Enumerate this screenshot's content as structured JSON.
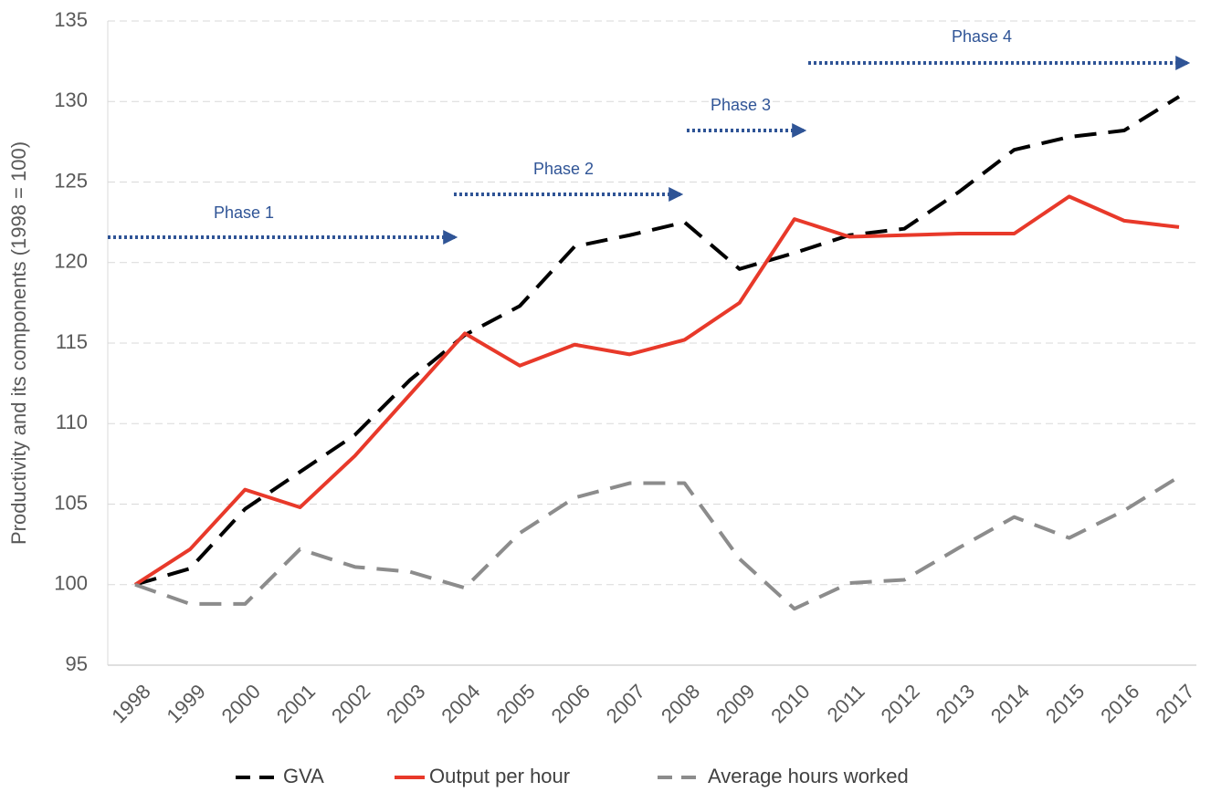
{
  "chart_data": {
    "type": "line",
    "y_label": "Productivity and its components (1998 = 100)",
    "categories": [
      "1998",
      "1999",
      "2000",
      "2001",
      "2002",
      "2003",
      "2004",
      "2005",
      "2006",
      "2007",
      "2008",
      "2009",
      "2010",
      "2011",
      "2012",
      "2013",
      "2014",
      "2015",
      "2016",
      "2017"
    ],
    "series": [
      {
        "name": "GVA",
        "color": "#000000",
        "dash": true,
        "values": [
          100,
          101,
          104.7,
          107,
          109.3,
          112.7,
          115.5,
          117.3,
          121,
          121.7,
          122.5,
          119.6,
          120.6,
          121.7,
          122.1,
          124.4,
          127,
          127.8,
          128.2,
          130.3
        ]
      },
      {
        "name": "Output per hour",
        "color": "#e8392a",
        "dash": false,
        "values": [
          100,
          102.2,
          105.9,
          104.8,
          108,
          111.8,
          115.6,
          113.6,
          114.9,
          114.3,
          115.2,
          117.5,
          122.7,
          121.6,
          121.7,
          121.8,
          121.8,
          124.1,
          122.6,
          122.2
        ]
      },
      {
        "name": "Average hours worked",
        "color": "#8c8c8c",
        "dash": true,
        "values": [
          100,
          98.8,
          98.8,
          102.2,
          101.1,
          100.8,
          99.8,
          103.2,
          105.4,
          106.3,
          106.3,
          101.6,
          98.5,
          100.1,
          100.3,
          102.3,
          104.2,
          102.9,
          104.6,
          106.7
        ]
      }
    ],
    "ylim": [
      95,
      135
    ],
    "yticks": [
      95,
      100,
      105,
      110,
      115,
      120,
      125,
      130,
      135
    ],
    "grid": true,
    "annotations": [
      "Phase 1",
      "Phase 2",
      "Phase 3",
      "Phase 4"
    ],
    "legend": "bottom"
  }
}
